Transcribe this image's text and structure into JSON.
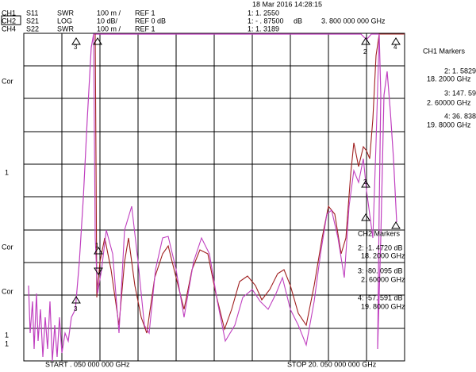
{
  "header": {
    "timestamp": "18 Mar 2016  14:28:15"
  },
  "channels": [
    {
      "channel": "CH1",
      "param": "S11",
      "format": "SWR",
      "scale": "100 m /",
      "ref": "REF 1",
      "readout": "1:  1. 2550",
      "unit": "",
      "freq": ""
    },
    {
      "channel": "CH2",
      "param": "S21",
      "format": "LOG",
      "scale": "10 dB/",
      "ref": "REF 0 dB",
      "readout": "1:  - . 87500",
      "unit": "dB",
      "freq": "3. 800  000  000   GHz"
    },
    {
      "channel": "CH4",
      "param": "S22",
      "format": "SWR",
      "scale": "100 m /",
      "ref": "REF 1",
      "readout": "1:  1. 3189",
      "unit": "",
      "freq": ""
    }
  ],
  "left_labels": [
    "Cor",
    "1",
    "Cor",
    "Cor",
    "1",
    "1"
  ],
  "ch1_markers": {
    "title": "CH1    Markers",
    "lines": [
      "2:  1. 5829",
      "18. 2000    GHz",
      "3:  147. 59",
      "2. 60000    GHz",
      "4:  36. 838",
      "19. 8000    GHz"
    ]
  },
  "ch2_markers": {
    "title": "CH2    Markers",
    "lines": [
      "2: -1. 4720   dB",
      "18. 2000    GHz",
      "3: -80. 095   dB",
      "2. 60000    GHz",
      "4: -57. 591   dB",
      "19. 8000    GHz"
    ]
  },
  "footer": {
    "start": "START   . 050  000  000   GHz",
    "stop": "STOP  20. 050  000  000   GHz"
  }
}
